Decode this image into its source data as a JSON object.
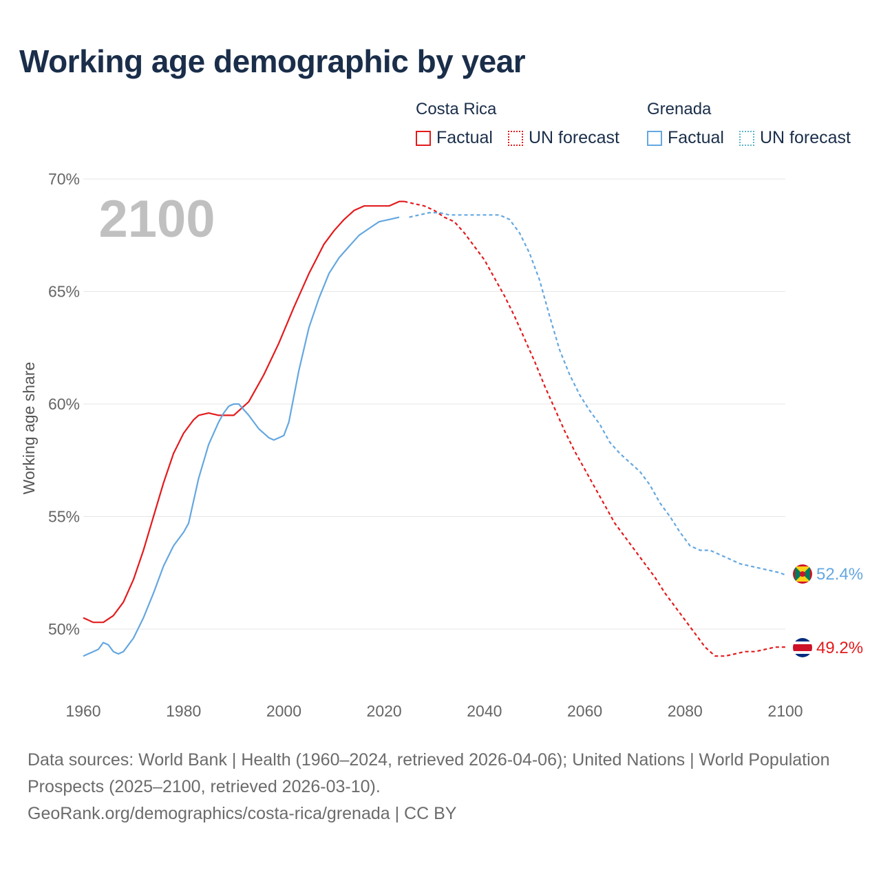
{
  "title": "Working age demographic by year",
  "legend": {
    "groups": [
      {
        "name": "Costa Rica",
        "color": "#e31a1c",
        "factual_label": "Factual",
        "forecast_label": "UN forecast"
      },
      {
        "name": "Grenada",
        "color": "#64a7e0",
        "forecast_color": "#5ab4c8",
        "factual_label": "Factual",
        "forecast_label": "UN forecast"
      }
    ]
  },
  "year_watermark": "2100",
  "footer": {
    "sources": "Data sources: World Bank | Health (1960–2024, retrieved 2026-04-06); United Nations | World Population Prospects (2025–2100, retrieved 2026-03-10).",
    "link": "GeoRank.org/demographics/costa-rica/grenada | CC BY"
  },
  "chart_data": {
    "type": "line",
    "title": "Working age demographic by year",
    "xlabel": "",
    "ylabel": "Working age share",
    "xlim": [
      1960,
      2100
    ],
    "ylim": [
      47.2,
      70
    ],
    "x_ticks": [
      1960,
      1980,
      2000,
      2020,
      2040,
      2060,
      2080,
      2100
    ],
    "y_ticks": [
      50,
      55,
      60,
      65,
      70
    ],
    "y_tick_labels": [
      "50%",
      "55%",
      "60%",
      "65%",
      "70%"
    ],
    "forecast_start": 2024,
    "series": [
      {
        "name": "Costa Rica",
        "color": "#e31a1c",
        "end_label": "49.2%",
        "points": [
          [
            1960,
            50.5
          ],
          [
            1962,
            50.3
          ],
          [
            1964,
            50.3
          ],
          [
            1966,
            50.6
          ],
          [
            1968,
            51.2
          ],
          [
            1970,
            52.2
          ],
          [
            1972,
            53.5
          ],
          [
            1974,
            55.0
          ],
          [
            1976,
            56.5
          ],
          [
            1978,
            57.8
          ],
          [
            1980,
            58.7
          ],
          [
            1982,
            59.3
          ],
          [
            1983,
            59.5
          ],
          [
            1985,
            59.6
          ],
          [
            1987,
            59.5
          ],
          [
            1990,
            59.5
          ],
          [
            1993,
            60.1
          ],
          [
            1996,
            61.3
          ],
          [
            1999,
            62.7
          ],
          [
            2002,
            64.3
          ],
          [
            2005,
            65.8
          ],
          [
            2008,
            67.1
          ],
          [
            2010,
            67.7
          ],
          [
            2012,
            68.2
          ],
          [
            2014,
            68.6
          ],
          [
            2016,
            68.8
          ],
          [
            2019,
            68.8
          ],
          [
            2021,
            68.8
          ],
          [
            2023,
            69.0
          ],
          [
            2024,
            69.0
          ],
          [
            2026,
            68.9
          ],
          [
            2028,
            68.8
          ],
          [
            2030,
            68.6
          ],
          [
            2032,
            68.3
          ],
          [
            2034,
            68.1
          ],
          [
            2036,
            67.6
          ],
          [
            2038,
            67.0
          ],
          [
            2040,
            66.4
          ],
          [
            2042,
            65.6
          ],
          [
            2044,
            64.8
          ],
          [
            2046,
            63.9
          ],
          [
            2048,
            62.9
          ],
          [
            2050,
            61.9
          ],
          [
            2052,
            60.8
          ],
          [
            2054,
            59.8
          ],
          [
            2056,
            58.8
          ],
          [
            2058,
            57.9
          ],
          [
            2060,
            57.1
          ],
          [
            2062,
            56.3
          ],
          [
            2064,
            55.5
          ],
          [
            2066,
            54.7
          ],
          [
            2068,
            54.1
          ],
          [
            2070,
            53.5
          ],
          [
            2072,
            52.9
          ],
          [
            2074,
            52.3
          ],
          [
            2076,
            51.6
          ],
          [
            2078,
            51.0
          ],
          [
            2080,
            50.4
          ],
          [
            2082,
            49.8
          ],
          [
            2084,
            49.2
          ],
          [
            2086,
            48.8
          ],
          [
            2088,
            48.8
          ],
          [
            2090,
            48.9
          ],
          [
            2092,
            49.0
          ],
          [
            2094,
            49.0
          ],
          [
            2096,
            49.1
          ],
          [
            2098,
            49.2
          ],
          [
            2100,
            49.2
          ]
        ]
      },
      {
        "name": "Grenada",
        "color": "#64a7e0",
        "end_label": "52.4%",
        "points": [
          [
            1960,
            48.8
          ],
          [
            1962,
            49.0
          ],
          [
            1963,
            49.1
          ],
          [
            1964,
            49.4
          ],
          [
            1965,
            49.3
          ],
          [
            1966,
            49.0
          ],
          [
            1967,
            48.9
          ],
          [
            1968,
            49.0
          ],
          [
            1970,
            49.6
          ],
          [
            1972,
            50.5
          ],
          [
            1974,
            51.6
          ],
          [
            1976,
            52.8
          ],
          [
            1978,
            53.7
          ],
          [
            1980,
            54.3
          ],
          [
            1981,
            54.7
          ],
          [
            1983,
            56.7
          ],
          [
            1985,
            58.2
          ],
          [
            1987,
            59.2
          ],
          [
            1988,
            59.6
          ],
          [
            1989,
            59.9
          ],
          [
            1990,
            60.0
          ],
          [
            1991,
            60.0
          ],
          [
            1993,
            59.5
          ],
          [
            1995,
            58.9
          ],
          [
            1997,
            58.5
          ],
          [
            1998,
            58.4
          ],
          [
            2000,
            58.6
          ],
          [
            2001,
            59.2
          ],
          [
            2003,
            61.5
          ],
          [
            2005,
            63.4
          ],
          [
            2007,
            64.7
          ],
          [
            2009,
            65.8
          ],
          [
            2011,
            66.5
          ],
          [
            2013,
            67.0
          ],
          [
            2015,
            67.5
          ],
          [
            2017,
            67.8
          ],
          [
            2019,
            68.1
          ],
          [
            2021,
            68.2
          ],
          [
            2023,
            68.3
          ],
          [
            2025,
            68.3
          ],
          [
            2027,
            68.4
          ],
          [
            2029,
            68.5
          ],
          [
            2031,
            68.5
          ],
          [
            2033,
            68.4
          ],
          [
            2035,
            68.4
          ],
          [
            2037,
            68.4
          ],
          [
            2039,
            68.4
          ],
          [
            2041,
            68.4
          ],
          [
            2043,
            68.4
          ],
          [
            2045,
            68.2
          ],
          [
            2047,
            67.6
          ],
          [
            2049,
            66.7
          ],
          [
            2051,
            65.5
          ],
          [
            2053,
            63.9
          ],
          [
            2055,
            62.4
          ],
          [
            2057,
            61.3
          ],
          [
            2059,
            60.4
          ],
          [
            2061,
            59.7
          ],
          [
            2063,
            59.1
          ],
          [
            2065,
            58.3
          ],
          [
            2067,
            57.8
          ],
          [
            2069,
            57.4
          ],
          [
            2071,
            57.0
          ],
          [
            2073,
            56.4
          ],
          [
            2075,
            55.6
          ],
          [
            2077,
            55.0
          ],
          [
            2079,
            54.3
          ],
          [
            2081,
            53.7
          ],
          [
            2083,
            53.5
          ],
          [
            2085,
            53.5
          ],
          [
            2087,
            53.3
          ],
          [
            2089,
            53.1
          ],
          [
            2091,
            52.9
          ],
          [
            2093,
            52.8
          ],
          [
            2095,
            52.7
          ],
          [
            2097,
            52.6
          ],
          [
            2099,
            52.5
          ],
          [
            2100,
            52.4
          ]
        ]
      }
    ]
  }
}
